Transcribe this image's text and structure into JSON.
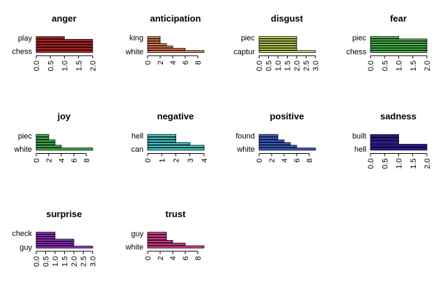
{
  "chart_data": [
    {
      "type": "bar",
      "orientation": "horizontal",
      "title": "anger",
      "categories": [
        "chess",
        null,
        null,
        null,
        null,
        "play"
      ],
      "values": [
        2,
        2,
        2,
        2,
        2,
        1
      ],
      "color": "#b22222",
      "xlim": [
        0,
        2
      ],
      "xticks": [
        {
          "value": 0,
          "label": "0.0"
        },
        {
          "value": 0.5,
          "label": "0.5"
        },
        {
          "value": 1,
          "label": "1.0"
        },
        {
          "value": 1.5,
          "label": "1.5"
        },
        {
          "value": 2,
          "label": "2.0"
        }
      ]
    },
    {
      "type": "bar",
      "orientation": "horizontal",
      "title": "anticipation",
      "categories": [
        "white",
        null,
        null,
        null,
        null,
        null,
        "king"
      ],
      "values": [
        9,
        6,
        4,
        3,
        2,
        2,
        2
      ],
      "color": "#e8825a",
      "xlim": [
        0,
        9
      ],
      "xticks": [
        0,
        2,
        4,
        6,
        8
      ]
    },
    {
      "type": "bar",
      "orientation": "horizontal",
      "title": "disgust",
      "categories": [
        "captur",
        null,
        null,
        null,
        null,
        null,
        "piec"
      ],
      "values": [
        3,
        2,
        2,
        2,
        2,
        2,
        2
      ],
      "color": "#c8d85a",
      "xlim": [
        0,
        3
      ],
      "xticks": [
        {
          "value": 0,
          "label": "0.0"
        },
        {
          "value": 0.5,
          "label": "0.5"
        },
        {
          "value": 1,
          "label": "1.0"
        },
        {
          "value": 1.5,
          "label": "1.5"
        },
        {
          "value": 2,
          "label": "2.0"
        },
        {
          "value": 2.5,
          "label": "2.5"
        },
        {
          "value": 3,
          "label": "3.0"
        }
      ]
    },
    {
      "type": "bar",
      "orientation": "horizontal",
      "title": "fear",
      "categories": [
        "chess",
        null,
        null,
        null,
        null,
        null,
        "piec"
      ],
      "values": [
        2,
        2,
        2,
        2,
        2,
        2,
        1
      ],
      "color": "#4fc24f",
      "xlim": [
        0,
        2
      ],
      "xticks": [
        {
          "value": 0,
          "label": "0.0"
        },
        {
          "value": 0.5,
          "label": "0.5"
        },
        {
          "value": 1,
          "label": "1.0"
        },
        {
          "value": 1.5,
          "label": "1.5"
        },
        {
          "value": 2,
          "label": "2.0"
        }
      ]
    },
    {
      "type": "bar",
      "orientation": "horizontal",
      "title": "joy",
      "categories": [
        "white",
        null,
        null,
        null,
        null,
        "piec"
      ],
      "values": [
        9,
        4,
        3,
        3,
        2,
        2
      ],
      "color": "#3db34a",
      "xlim": [
        0,
        9
      ],
      "xticks": [
        0,
        2,
        4,
        6,
        8
      ]
    },
    {
      "type": "bar",
      "orientation": "horizontal",
      "title": "negative",
      "categories": [
        "can",
        null,
        null,
        null,
        null,
        "hell"
      ],
      "values": [
        4,
        4,
        3,
        2,
        2,
        2
      ],
      "color": "#40c8c8",
      "xlim": [
        0,
        4
      ],
      "xticks": [
        0,
        1,
        2,
        3,
        4
      ]
    },
    {
      "type": "bar",
      "orientation": "horizontal",
      "title": "positive",
      "categories": [
        "white",
        null,
        null,
        null,
        null,
        "found"
      ],
      "values": [
        9,
        6,
        5,
        4,
        3,
        3
      ],
      "color": "#3a5fcd",
      "xlim": [
        0,
        9
      ],
      "xticks": [
        0,
        2,
        4,
        6,
        8
      ]
    },
    {
      "type": "bar",
      "orientation": "horizontal",
      "title": "sadness",
      "categories": [
        "hell",
        null,
        null,
        null,
        "built"
      ],
      "values": [
        2,
        2,
        1,
        1,
        1
      ],
      "color": "#2a1a9a",
      "xlim": [
        0,
        2
      ],
      "xticks": [
        {
          "value": 0,
          "label": "0.0"
        },
        {
          "value": 0.5,
          "label": "0.5"
        },
        {
          "value": 1,
          "label": "1.0"
        },
        {
          "value": 1.5,
          "label": "1.5"
        },
        {
          "value": 2,
          "label": "2.0"
        }
      ]
    },
    {
      "type": "bar",
      "orientation": "horizontal",
      "title": "surprise",
      "categories": [
        "guy",
        null,
        null,
        null,
        null,
        null,
        "check"
      ],
      "values": [
        3,
        2,
        2,
        2,
        1,
        1,
        1
      ],
      "color": "#9b30d0",
      "xlim": [
        0,
        3
      ],
      "xticks": [
        {
          "value": 0,
          "label": "0.0"
        },
        {
          "value": 0.5,
          "label": "0.5"
        },
        {
          "value": 1,
          "label": "1.0"
        },
        {
          "value": 1.5,
          "label": "1.5"
        },
        {
          "value": 2,
          "label": "2.0"
        },
        {
          "value": 2.5,
          "label": "2.5"
        },
        {
          "value": 3,
          "label": "3.0"
        }
      ]
    },
    {
      "type": "bar",
      "orientation": "horizontal",
      "title": "trust",
      "categories": [
        "white",
        null,
        null,
        null,
        null,
        "guy"
      ],
      "values": [
        9,
        6,
        4,
        3,
        3,
        3
      ],
      "color": "#d63a8c",
      "xlim": [
        0,
        9
      ],
      "xticks": [
        0,
        2,
        4,
        6,
        8
      ]
    }
  ]
}
